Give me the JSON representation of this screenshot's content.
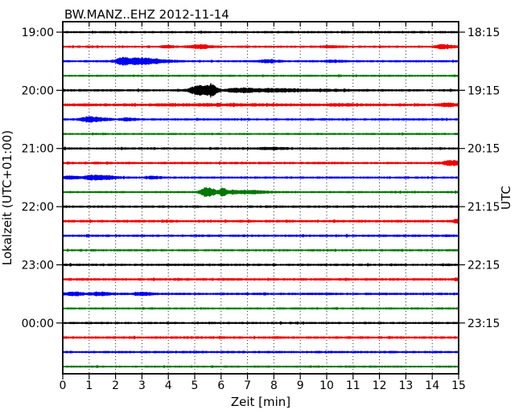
{
  "chart_data": {
    "type": "line",
    "variant": "seismogram_dayplot",
    "title": "BW.MANZ..EHZ 2012-11-14",
    "xlabel": "Zeit  [min]",
    "ylabel_left": "Lokalzeit (UTC+01:00)",
    "ylabel_right": "UTC",
    "xlim": [
      0,
      15
    ],
    "minutes_per_line": 15,
    "grid": "vertical-dotted-per-minute",
    "legend": "none",
    "x_ticks": [
      "0",
      "1",
      "2",
      "3",
      "4",
      "5",
      "6",
      "7",
      "8",
      "9",
      "10",
      "11",
      "12",
      "13",
      "14",
      "15"
    ],
    "left_tick_labels": [
      "19:00",
      "20:00",
      "21:00",
      "22:00",
      "23:00",
      "00:00"
    ],
    "right_tick_labels": [
      "18:15",
      "19:15",
      "20:15",
      "21:15",
      "22:15",
      "23:15"
    ],
    "line_colors": {
      "black": "#000000",
      "red": "#f00000",
      "blue": "#0000f0",
      "green": "#007800"
    },
    "rows": [
      {
        "local": "19:00",
        "color": "black",
        "left_label": "19:00",
        "right_label": "18:15",
        "base": 1.2,
        "events": []
      },
      {
        "local": "19:15",
        "color": "red",
        "base": 1.2,
        "events": [
          {
            "t": 3.95,
            "wl": 0.15,
            "wr": 0.2,
            "a": 1.3
          },
          {
            "t": 5.15,
            "wl": 0.25,
            "wr": 0.35,
            "a": 2.2
          },
          {
            "t": 10.1,
            "wl": 0.2,
            "wr": 0.3,
            "a": 1.0
          },
          {
            "t": 14.4,
            "wl": 0.2,
            "wr": 0.3,
            "a": 2.4
          }
        ]
      },
      {
        "local": "19:30",
        "color": "blue",
        "base": 1.2,
        "events": [
          {
            "t": 2.3,
            "wl": 0.22,
            "wr": 0.85,
            "a": 4.6
          },
          {
            "t": 3.2,
            "wl": 0.3,
            "wr": 0.6,
            "a": 1.3
          },
          {
            "t": 7.7,
            "wl": 0.25,
            "wr": 0.35,
            "a": 1.4
          },
          {
            "t": 10.15,
            "wl": 0.2,
            "wr": 0.3,
            "a": 1.0
          }
        ]
      },
      {
        "local": "19:45",
        "color": "green",
        "base": 1.1,
        "events": []
      },
      {
        "local": "20:00",
        "color": "black",
        "left_label": "20:00",
        "right_label": "19:15",
        "base": 1.3,
        "events": [
          {
            "t": 5.1,
            "wl": 0.22,
            "wr": 0.22,
            "a": 5.0
          },
          {
            "t": 5.4,
            "wl": 0.15,
            "wr": 0.15,
            "a": 3.8
          },
          {
            "t": 5.65,
            "wl": 0.1,
            "wr": 0.16,
            "a": 7.5
          },
          {
            "t": 6.4,
            "wl": 0.12,
            "wr": 0.2,
            "a": 2.6
          },
          {
            "t": 6.9,
            "wl": 0.18,
            "wr": 0.28,
            "a": 2.2
          },
          {
            "t": 7.9,
            "wl": 0.4,
            "wr": 0.7,
            "a": 1.6
          },
          {
            "t": 9.2,
            "wl": 0.8,
            "wr": 1.4,
            "a": 0.7
          }
        ]
      },
      {
        "local": "20:15",
        "color": "red",
        "base": 1.6,
        "events": [
          {
            "t": 5.3,
            "wl": 1.2,
            "wr": 1.5,
            "a": 0.6
          },
          {
            "t": 10.4,
            "wl": 0.3,
            "wr": 0.4,
            "a": 0.8
          },
          {
            "t": 14.6,
            "wl": 0.25,
            "wr": 0.3,
            "a": 1.5
          }
        ]
      },
      {
        "local": "20:30",
        "color": "blue",
        "base": 1.2,
        "events": [
          {
            "t": 0.95,
            "wl": 0.2,
            "wr": 0.45,
            "a": 3.2
          },
          {
            "t": 2.45,
            "wl": 0.15,
            "wr": 0.2,
            "a": 1.5
          }
        ]
      },
      {
        "local": "20:45",
        "color": "green",
        "base": 1.1,
        "events": []
      },
      {
        "local": "21:00",
        "color": "black",
        "left_label": "21:00",
        "right_label": "20:15",
        "base": 1.25,
        "events": [
          {
            "t": 7.8,
            "wl": 0.3,
            "wr": 0.5,
            "a": 1.0
          }
        ]
      },
      {
        "local": "21:15",
        "color": "red",
        "base": 1.3,
        "events": [
          {
            "t": 14.7,
            "wl": 0.18,
            "wr": 0.25,
            "a": 3.4
          }
        ]
      },
      {
        "local": "21:30",
        "color": "blue",
        "base": 1.2,
        "events": [
          {
            "t": 0.2,
            "wl": 0.12,
            "wr": 0.25,
            "a": 1.9
          },
          {
            "t": 1.05,
            "wl": 0.2,
            "wr": 0.35,
            "a": 2.6
          },
          {
            "t": 1.6,
            "wl": 0.2,
            "wr": 0.4,
            "a": 1.6
          },
          {
            "t": 3.4,
            "wl": 0.15,
            "wr": 0.25,
            "a": 1.5
          }
        ]
      },
      {
        "local": "21:45",
        "color": "green",
        "base": 1.15,
        "events": [
          {
            "t": 5.45,
            "wl": 0.17,
            "wr": 0.28,
            "a": 5.6
          },
          {
            "t": 6.05,
            "wl": 0.07,
            "wr": 0.12,
            "a": 4.4
          },
          {
            "t": 6.5,
            "wl": 0.25,
            "wr": 0.5,
            "a": 1.8
          },
          {
            "t": 7.25,
            "wl": 0.25,
            "wr": 0.45,
            "a": 1.1
          }
        ]
      },
      {
        "local": "22:00",
        "color": "black",
        "left_label": "22:00",
        "right_label": "21:15",
        "base": 1.3,
        "events": []
      },
      {
        "local": "22:15",
        "color": "red",
        "base": 1.4,
        "events": [
          {
            "t": 14.95,
            "wl": 0.12,
            "wr": 0.2,
            "a": 2.0
          }
        ]
      },
      {
        "local": "22:30",
        "color": "blue",
        "base": 1.3,
        "events": []
      },
      {
        "local": "22:45",
        "color": "green",
        "base": 1.15,
        "events": []
      },
      {
        "local": "23:00",
        "color": "black",
        "left_label": "23:00",
        "right_label": "22:15",
        "base": 1.25,
        "events": []
      },
      {
        "local": "23:15",
        "color": "red",
        "base": 1.4,
        "events": [
          {
            "t": 14.95,
            "wl": 0.1,
            "wr": 0.15,
            "a": 1.6
          }
        ]
      },
      {
        "local": "23:30",
        "color": "blue",
        "base": 1.3,
        "events": [
          {
            "t": 0.35,
            "wl": 0.18,
            "wr": 0.3,
            "a": 1.7
          },
          {
            "t": 1.35,
            "wl": 0.2,
            "wr": 0.35,
            "a": 1.8
          },
          {
            "t": 2.95,
            "wl": 0.15,
            "wr": 0.3,
            "a": 1.5
          }
        ]
      },
      {
        "local": "23:45",
        "color": "green",
        "base": 1.1,
        "events": []
      },
      {
        "local": "00:00",
        "color": "black",
        "left_label": "00:00",
        "right_label": "23:15",
        "base": 1.2,
        "events": []
      },
      {
        "local": "00:15",
        "color": "red",
        "base": 1.35,
        "events": []
      },
      {
        "local": "00:30",
        "color": "blue",
        "base": 1.3,
        "events": []
      },
      {
        "local": "00:45",
        "color": "green",
        "base": 1.1,
        "events": []
      }
    ]
  }
}
